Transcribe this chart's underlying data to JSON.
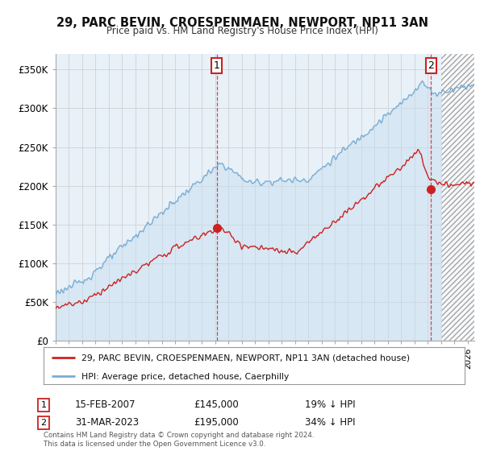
{
  "title": "29, PARC BEVIN, CROESPENMAEN, NEWPORT, NP11 3AN",
  "subtitle": "Price paid vs. HM Land Registry's House Price Index (HPI)",
  "legend_line1": "29, PARC BEVIN, CROESPENMAEN, NEWPORT, NP11 3AN (detached house)",
  "legend_line2": "HPI: Average price, detached house, Caerphilly",
  "annotation1_date": "15-FEB-2007",
  "annotation1_price": "£145,000",
  "annotation1_hpi": "19% ↓ HPI",
  "annotation2_date": "31-MAR-2023",
  "annotation2_price": "£195,000",
  "annotation2_hpi": "34% ↓ HPI",
  "footer": "Contains HM Land Registry data © Crown copyright and database right 2024.\nThis data is licensed under the Open Government Licence v3.0.",
  "hpi_color": "#7aadd4",
  "price_color": "#cc2222",
  "ylim": [
    0,
    370000
  ],
  "yticks": [
    0,
    50000,
    100000,
    150000,
    200000,
    250000,
    300000,
    350000
  ],
  "ytick_labels": [
    "£0",
    "£50K",
    "£100K",
    "£150K",
    "£200K",
    "£250K",
    "£300K",
    "£350K"
  ],
  "background_color": "#ffffff",
  "grid_color": "#cccccc",
  "hatch_start_year": 2024.0,
  "xmin": 1995,
  "xmax": 2026.5,
  "t1_x": 2007.12,
  "t1_y": 145000,
  "t2_x": 2023.25,
  "t2_y": 195000
}
